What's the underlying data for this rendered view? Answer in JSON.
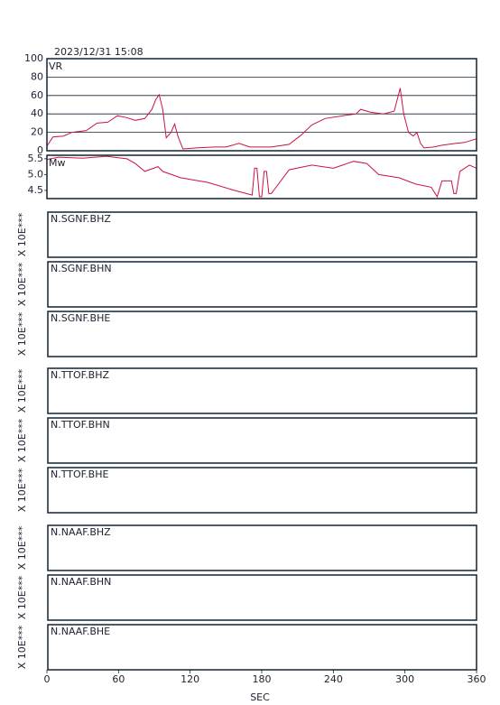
{
  "chart_data": [
    {
      "type": "line",
      "title": "2023/12/31 15:08",
      "ylabel": "VR",
      "x": [
        0,
        5,
        14,
        21,
        33,
        42,
        51,
        59,
        67,
        74,
        82,
        88,
        91,
        94,
        97,
        100,
        104,
        107,
        110,
        114,
        125,
        140,
        150,
        161,
        170,
        188,
        203,
        213,
        222,
        233,
        248,
        259,
        263,
        271,
        282,
        291,
        296,
        299,
        303,
        307,
        310,
        313,
        316,
        324,
        331,
        343,
        350,
        360
      ],
      "series": [
        {
          "color": "#cc1144",
          "values": [
            5,
            15,
            16,
            20,
            22,
            30,
            31,
            38,
            36,
            33,
            35,
            45,
            55,
            61,
            45,
            14,
            20,
            29,
            15,
            2,
            3,
            4,
            4,
            8,
            4,
            4,
            7,
            17,
            28,
            35,
            38,
            40,
            45,
            42,
            40,
            43,
            68,
            40,
            20,
            16,
            20,
            8,
            3,
            4,
            6,
            8,
            9,
            13
          ]
        }
      ],
      "xlim": [
        0,
        360
      ],
      "ylim": [
        0,
        100
      ],
      "yticks": [
        0,
        20,
        40,
        60,
        80,
        100
      ],
      "grid": true
    },
    {
      "type": "line",
      "ylabel": "Mw",
      "x": [
        0,
        10,
        30,
        50,
        67,
        74,
        82,
        93,
        97,
        112,
        135,
        157,
        172,
        174,
        176,
        178,
        180,
        182,
        184,
        186,
        188,
        203,
        222,
        240,
        257,
        268,
        278,
        295,
        309,
        322,
        327,
        331,
        339,
        341,
        343,
        346,
        354,
        360
      ],
      "series": [
        {
          "color": "#cc1144",
          "values": [
            5.48,
            5.55,
            5.52,
            5.58,
            5.5,
            5.35,
            5.1,
            5.25,
            5.1,
            4.9,
            4.75,
            4.5,
            4.35,
            5.2,
            5.2,
            4.3,
            4.3,
            5.1,
            5.1,
            4.4,
            4.4,
            5.15,
            5.3,
            5.2,
            5.42,
            5.35,
            5.0,
            4.9,
            4.7,
            4.6,
            4.3,
            4.8,
            4.8,
            4.4,
            4.4,
            5.1,
            5.3,
            5.2
          ]
        }
      ],
      "xlim": [
        0,
        360
      ],
      "ylim": [
        4.24,
        5.61
      ],
      "yticks": [
        4.5,
        {
          "value": 5,
          "label": "5.0"
        },
        5.5
      ],
      "grid": false
    },
    {
      "type": "waveform",
      "xlabel": "SEC",
      "xlim": [
        0,
        360
      ],
      "xticks": [
        0,
        60,
        120,
        180,
        240,
        300,
        360
      ],
      "panels": [
        {
          "station": "N.SGNF.BHZ",
          "unit_label": "X 10E***"
        },
        {
          "station": "N.SGNF.BHN",
          "unit_label": "X 10E***"
        },
        {
          "station": "N.SGNF.BHE",
          "unit_label": "X 10E***"
        },
        {
          "station": "N.TTOF.BHZ",
          "unit_label": "X 10E***"
        },
        {
          "station": "N.TTOF.BHN",
          "unit_label": "X 10E***"
        },
        {
          "station": "N.TTOF.BHE",
          "unit_label": "X 10E***"
        },
        {
          "station": "N.NAAF.BHZ",
          "unit_label": "X 10E***"
        },
        {
          "station": "N.NAAF.BHN",
          "unit_label": "X 10E***"
        },
        {
          "station": "N.NAAF.BHE",
          "unit_label": "X 10E***"
        }
      ]
    }
  ]
}
